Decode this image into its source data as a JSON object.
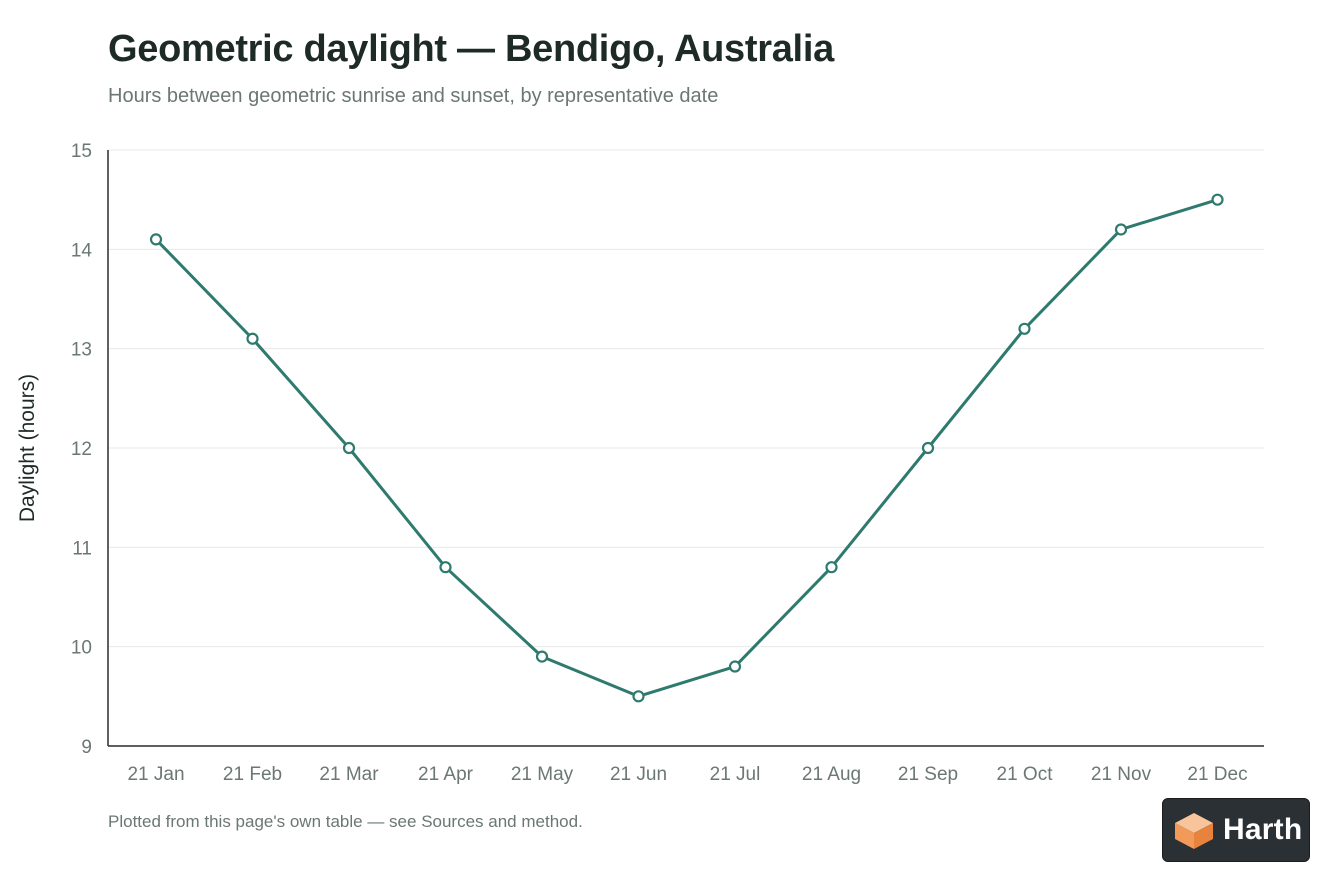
{
  "header": {
    "title": "Geometric daylight — Bendigo, Australia",
    "subtitle": "Hours between geometric sunrise and sunset, by representative date"
  },
  "footnote": "Plotted from this page's own table — see Sources and method.",
  "logo": {
    "text": "Harth",
    "icon": "cube-logo-icon"
  },
  "colors": {
    "line": "#2f7a6e",
    "grid": "#e7e9e8",
    "axis": "#2b2b2b"
  },
  "chart_data": {
    "type": "line",
    "title": "Geometric daylight — Bendigo, Australia",
    "subtitle": "Hours between geometric sunrise and sunset, by representative date",
    "xlabel": "",
    "ylabel": "Daylight (hours)",
    "ylim": [
      9,
      15
    ],
    "yticks": [
      9,
      10,
      11,
      12,
      13,
      14,
      15
    ],
    "grid": true,
    "legend": "none",
    "categories": [
      "21 Jan",
      "21 Feb",
      "21 Mar",
      "21 Apr",
      "21 May",
      "21 Jun",
      "21 Jul",
      "21 Aug",
      "21 Sep",
      "21 Oct",
      "21 Nov",
      "21 Dec"
    ],
    "series": [
      {
        "values": [
          14.1,
          13.1,
          12.0,
          10.8,
          9.9,
          9.5,
          9.8,
          10.8,
          12.0,
          13.2,
          14.2,
          14.5
        ]
      }
    ]
  }
}
